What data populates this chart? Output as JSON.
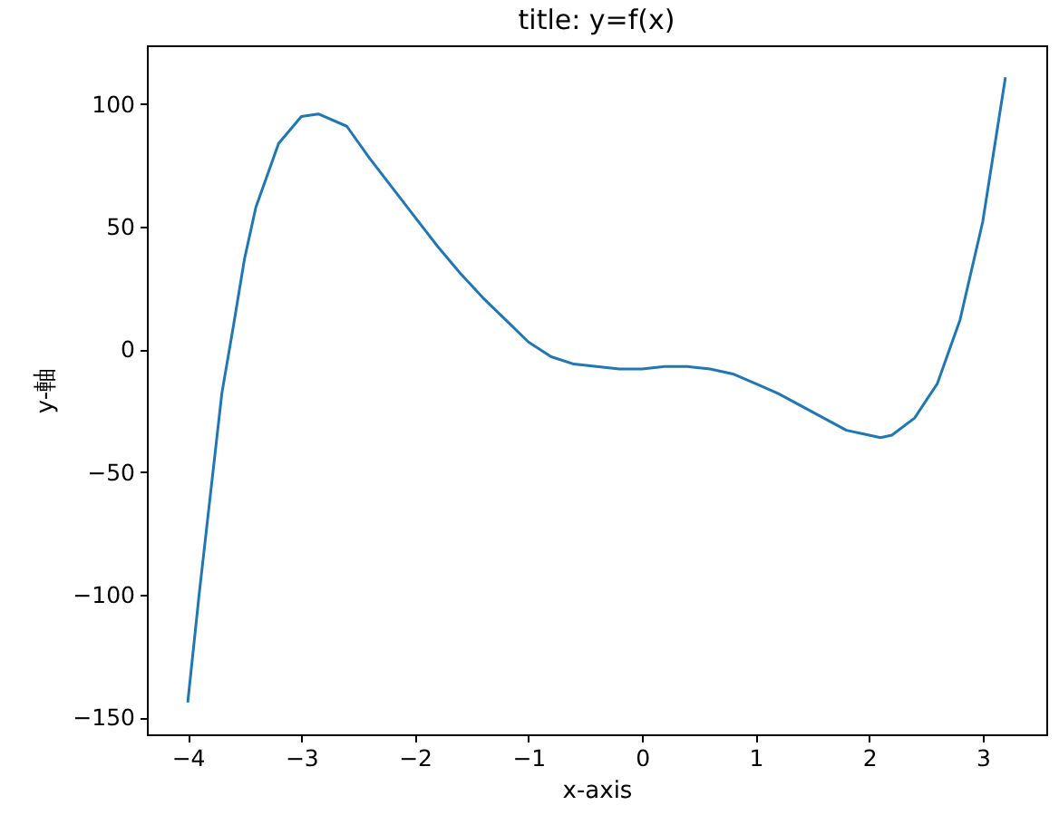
{
  "chart_data": {
    "type": "line",
    "title": "title: y=f(x)",
    "xlabel": "x-axis",
    "ylabel": "y-軸",
    "x": [
      -4,
      -3.9,
      -3.8,
      -3.7,
      -3.6,
      -3.5,
      -3.4,
      -3.2,
      -3.0,
      -2.85,
      -2.6,
      -2.4,
      -2.2,
      -2.0,
      -1.8,
      -1.6,
      -1.4,
      -1.2,
      -1.0,
      -0.8,
      -0.6,
      -0.4,
      -0.2,
      0,
      0.2,
      0.4,
      0.6,
      0.8,
      1.0,
      1.2,
      1.4,
      1.6,
      1.8,
      2.0,
      2.1,
      2.2,
      2.4,
      2.6,
      2.8,
      3.0,
      3.2
    ],
    "series": [
      {
        "color": "#1f77b4",
        "values": [
          -144,
          -100,
          -59,
          -18,
          9,
          37,
          58,
          84,
          95,
          96,
          91,
          78,
          66,
          54,
          42,
          31,
          21,
          12,
          3,
          -3,
          -6,
          -7,
          -8,
          -8,
          -7,
          -7,
          -8,
          -10,
          -14,
          -18,
          -23,
          -28,
          -33,
          -35,
          -36,
          -35,
          -28,
          -14,
          12,
          52,
          111
        ]
      }
    ],
    "xlim": [
      -4.36,
      3.56
    ],
    "xticks": [
      -4,
      -3,
      -2,
      -1,
      0,
      1,
      2,
      3
    ],
    "ylim": [
      -157,
      124
    ],
    "yticks": [
      -150,
      -100,
      -50,
      0,
      50,
      100
    ],
    "grid": false,
    "legend": false
  }
}
